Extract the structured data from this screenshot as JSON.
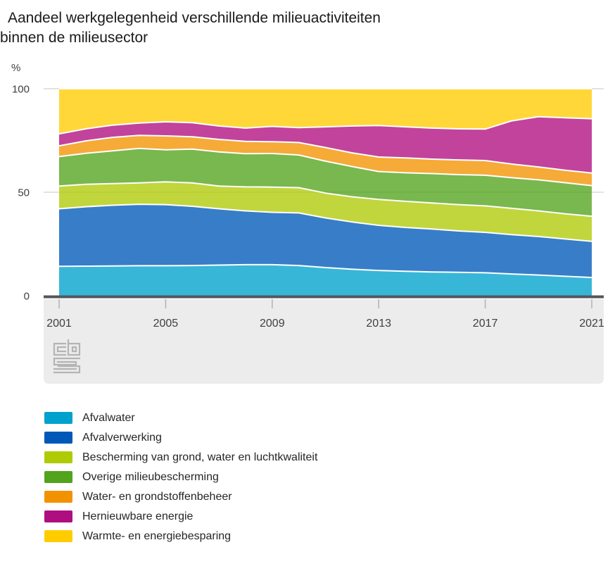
{
  "title": {
    "line1": "Aandeel werkgelegenheid verschillende milieuactiviteiten",
    "line2": "binnen de milieusector"
  },
  "y_axis": {
    "unit": "%",
    "tick_values": [
      100,
      50,
      0
    ]
  },
  "x_axis": {
    "tick_years": [
      2001,
      2005,
      2009,
      2013,
      2017,
      2021
    ]
  },
  "footer": {
    "logo": "cbs-logo"
  },
  "colors": {
    "grid": "#d9d9d9",
    "axis": "#55565a",
    "tick": "#b3b3b3",
    "band_background": "#ececec",
    "logo": "#b4b4b4",
    "label_text": "#3f3f3f"
  },
  "chart_data": {
    "type": "area",
    "stacked": true,
    "title": "Aandeel werkgelegenheid verschillende milieuactiviteiten binnen de milieusector",
    "ylabel": "%",
    "ylim": [
      0,
      100
    ],
    "grid": "horizontal gridlines at 50 and 100",
    "legend_position": "bottom-left",
    "x": [
      2001,
      2002,
      2003,
      2004,
      2005,
      2006,
      2007,
      2008,
      2009,
      2010,
      2011,
      2012,
      2013,
      2014,
      2015,
      2016,
      2017,
      2018,
      2019,
      2020,
      2021
    ],
    "series": [
      {
        "name": "Afvalwater",
        "slug": "afvalwater",
        "color": "#00a1cd",
        "values": [
          14.2,
          14.3,
          14.4,
          14.5,
          14.5,
          14.6,
          14.8,
          15.0,
          15.0,
          14.6,
          13.6,
          12.8,
          12.2,
          11.8,
          11.5,
          11.3,
          11.1,
          10.5,
          10.0,
          9.4,
          8.8
        ]
      },
      {
        "name": "Afvalverwerking",
        "slug": "afvalverwerking",
        "color": "#0058b8",
        "values": [
          27.8,
          28.7,
          29.3,
          29.7,
          29.5,
          28.6,
          27.2,
          26.0,
          25.3,
          25.4,
          24.0,
          22.8,
          21.8,
          21.2,
          20.7,
          20.0,
          19.5,
          19.0,
          18.6,
          18.0,
          17.5
        ]
      },
      {
        "name": "Bescherming van grond, water en luchtkwaliteit",
        "slug": "bescherming-grond-water-lucht",
        "color": "#afcb05",
        "values": [
          11.0,
          10.8,
          10.5,
          10.3,
          11.0,
          11.3,
          11.0,
          11.6,
          12.2,
          12.2,
          12.0,
          12.2,
          12.5,
          12.6,
          12.6,
          12.7,
          12.8,
          12.7,
          12.4,
          12.2,
          12.1
        ]
      },
      {
        "name": "Overige milieubescherming",
        "slug": "overige-milieubescherming",
        "color": "#53a31d",
        "values": [
          14.2,
          15.0,
          15.8,
          16.7,
          15.5,
          16.3,
          16.5,
          16.0,
          16.2,
          15.8,
          15.4,
          14.6,
          13.5,
          13.8,
          14.2,
          14.5,
          14.8,
          14.8,
          15.0,
          15.0,
          14.8
        ]
      },
      {
        "name": "Water- en grondstoffenbeheer",
        "slug": "water-en-grondstoffenbeheer",
        "color": "#f39200",
        "values": [
          5.2,
          6.0,
          6.5,
          6.3,
          6.7,
          6.0,
          6.0,
          6.0,
          5.7,
          6.0,
          6.6,
          6.6,
          7.0,
          7.2,
          7.0,
          7.1,
          7.1,
          6.6,
          6.2,
          6.0,
          6.1
        ]
      },
      {
        "name": "Hernieuwbare energie",
        "slug": "hernieuwbare-energie",
        "color": "#af0e80",
        "values": [
          5.8,
          5.8,
          5.9,
          5.9,
          6.8,
          6.8,
          6.5,
          6.4,
          7.4,
          7.2,
          10.0,
          13.0,
          15.2,
          15.0,
          15.0,
          15.0,
          15.2,
          20.9,
          24.3,
          25.4,
          26.2
        ]
      },
      {
        "name": "Warmte- en energiebesparing",
        "slug": "warmte-en-energiebesparing",
        "color": "#ffcc00",
        "values": [
          21.8,
          19.4,
          17.6,
          16.6,
          16.0,
          16.4,
          18.0,
          19.0,
          18.2,
          18.8,
          18.4,
          18.0,
          17.8,
          18.4,
          19.0,
          19.4,
          19.5,
          15.5,
          13.5,
          14.0,
          14.5
        ]
      }
    ]
  }
}
